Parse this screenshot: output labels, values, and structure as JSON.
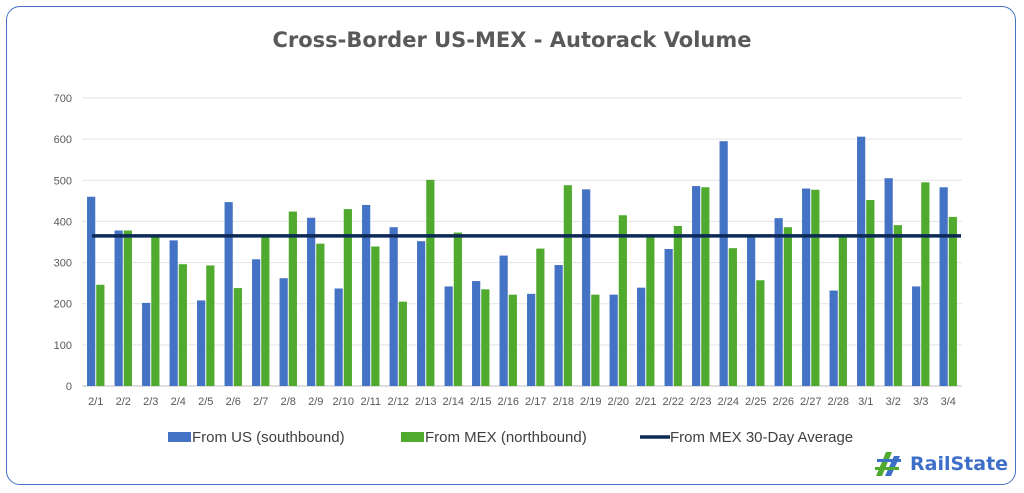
{
  "chart_data": {
    "type": "bar",
    "title": "Cross-Border US-MEX - Autorack Volume",
    "categories": [
      "2/1",
      "2/2",
      "2/3",
      "2/4",
      "2/5",
      "2/6",
      "2/7",
      "2/8",
      "2/9",
      "2/10",
      "2/11",
      "2/12",
      "2/13",
      "2/14",
      "2/15",
      "2/16",
      "2/17",
      "2/18",
      "2/19",
      "2/20",
      "2/21",
      "2/22",
      "2/23",
      "2/24",
      "2/25",
      "2/26",
      "2/27",
      "2/28",
      "3/1",
      "3/2",
      "3/3",
      "3/4"
    ],
    "series": [
      {
        "name": "From US (southbound)",
        "color": "#4472c4",
        "values": [
          460,
          378,
          202,
          354,
          208,
          447,
          308,
          262,
          409,
          237,
          440,
          386,
          352,
          242,
          255,
          317,
          224,
          294,
          478,
          222,
          239,
          333,
          486,
          595,
          365,
          408,
          480,
          232,
          606,
          505,
          242,
          483
        ]
      },
      {
        "name": "From MEX (northbound)",
        "color": "#4faa2e",
        "values": [
          246,
          378,
          365,
          296,
          293,
          238,
          365,
          424,
          346,
          430,
          339,
          205,
          501,
          373,
          235,
          222,
          334,
          488,
          222,
          415,
          365,
          389,
          483,
          335,
          257,
          386,
          477,
          365,
          452,
          391,
          495,
          411
        ]
      }
    ],
    "average_line": {
      "name": "From MEX 30-Day Average",
      "value": 365,
      "color": "#0d2a56"
    },
    "xlabel": "",
    "ylabel": "",
    "ylim": [
      0,
      700
    ],
    "yticks": [
      0,
      100,
      200,
      300,
      400,
      500,
      600,
      700
    ],
    "grid": true,
    "legend": "bottom"
  },
  "branding": {
    "logo_text_1": "Rail",
    "logo_text_2": "State",
    "logo_icon": "railstate-logo-icon"
  }
}
